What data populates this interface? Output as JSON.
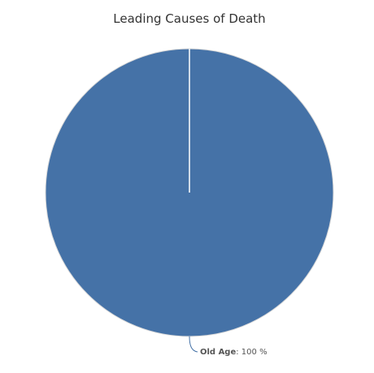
{
  "chart_data": {
    "type": "pie",
    "title": "Leading Causes of Death",
    "slices": [
      {
        "label": "Old Age",
        "value": 100,
        "color": "#4572a7"
      }
    ],
    "data_label_suffix": ": 100 %",
    "slice_border_color": "#ffffff",
    "legend": "none"
  }
}
